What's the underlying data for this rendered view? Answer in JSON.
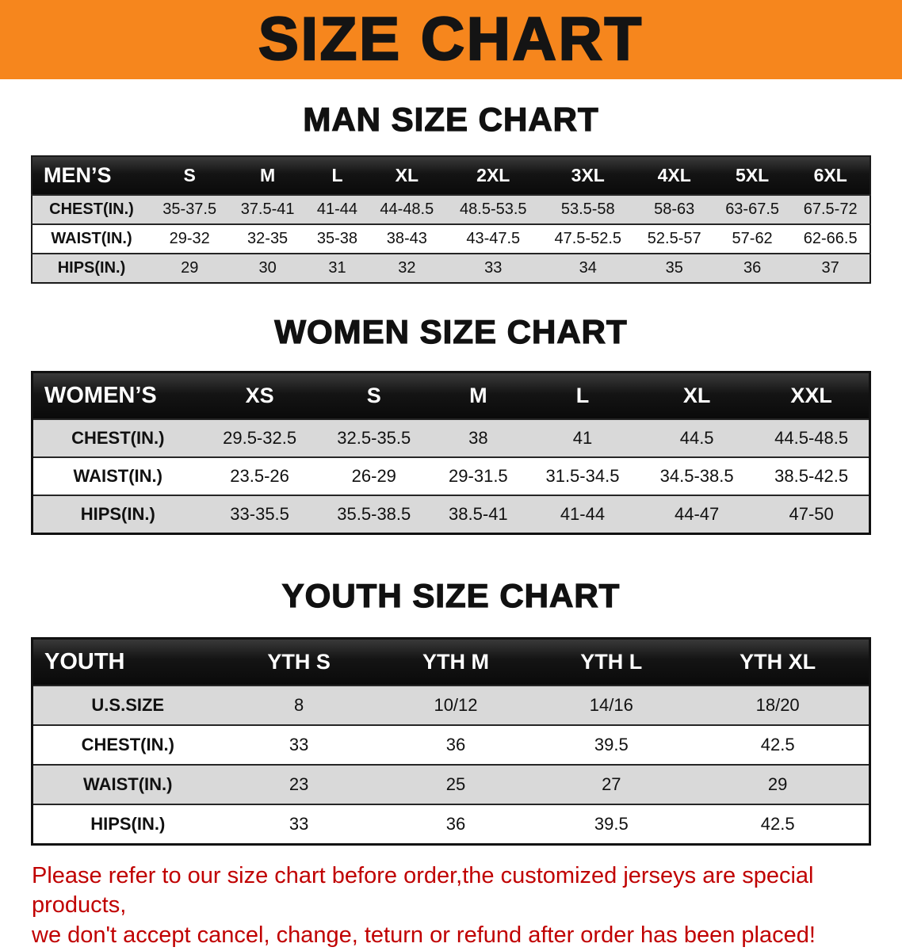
{
  "banner": {
    "title": "SIZE CHART"
  },
  "colors": {
    "banner_bg": "#F6861D",
    "header_bar_bg": "#141414",
    "row_alt_bg": "#D9D9D9",
    "disclaimer_text": "#C00000"
  },
  "sections": [
    {
      "heading": "MAN SIZE CHART",
      "table": {
        "header": [
          "MEN’S",
          "S",
          "M",
          "L",
          "XL",
          "2XL",
          "3XL",
          "4XL",
          "5XL",
          "6XL"
        ],
        "rows": [
          [
            "CHEST(IN.)",
            "35-37.5",
            "37.5-41",
            "41-44",
            "44-48.5",
            "48.5-53.5",
            "53.5-58",
            "58-63",
            "63-67.5",
            "67.5-72"
          ],
          [
            "WAIST(IN.)",
            "29-32",
            "32-35",
            "35-38",
            "38-43",
            "43-47.5",
            "47.5-52.5",
            "52.5-57",
            "57-62",
            "62-66.5"
          ],
          [
            "HIPS(IN.)",
            "29",
            "30",
            "31",
            "32",
            "33",
            "34",
            "35",
            "36",
            "37"
          ]
        ]
      }
    },
    {
      "heading": "WOMEN SIZE CHART",
      "table": {
        "header": [
          "WOMEN’S",
          "XS",
          "S",
          "M",
          "L",
          "XL",
          "XXL"
        ],
        "rows": [
          [
            "CHEST(IN.)",
            "29.5-32.5",
            "32.5-35.5",
            "38",
            "41",
            "44.5",
            "44.5-48.5"
          ],
          [
            "WAIST(IN.)",
            "23.5-26",
            "26-29",
            "29-31.5",
            "31.5-34.5",
            "34.5-38.5",
            "38.5-42.5"
          ],
          [
            "HIPS(IN.)",
            "33-35.5",
            "35.5-38.5",
            "38.5-41",
            "41-44",
            "44-47",
            "47-50"
          ]
        ]
      }
    },
    {
      "heading": "YOUTH SIZE CHART",
      "table": {
        "header": [
          "YOUTH",
          "YTH S",
          "YTH M",
          "YTH L",
          "YTH XL"
        ],
        "rows": [
          [
            "U.S.SIZE",
            "8",
            "10/12",
            "14/16",
            "18/20"
          ],
          [
            "CHEST(IN.)",
            "33",
            "36",
            "39.5",
            "42.5"
          ],
          [
            "WAIST(IN.)",
            "23",
            "25",
            "27",
            "29"
          ],
          [
            "HIPS(IN.)",
            "33",
            "36",
            "39.5",
            "42.5"
          ]
        ]
      }
    }
  ],
  "footer": {
    "line1": "Please refer to our size chart before order,the customized jerseys are special products,",
    "line2": "we don't accept cancel, change, teturn or refund after order has been placed!"
  }
}
